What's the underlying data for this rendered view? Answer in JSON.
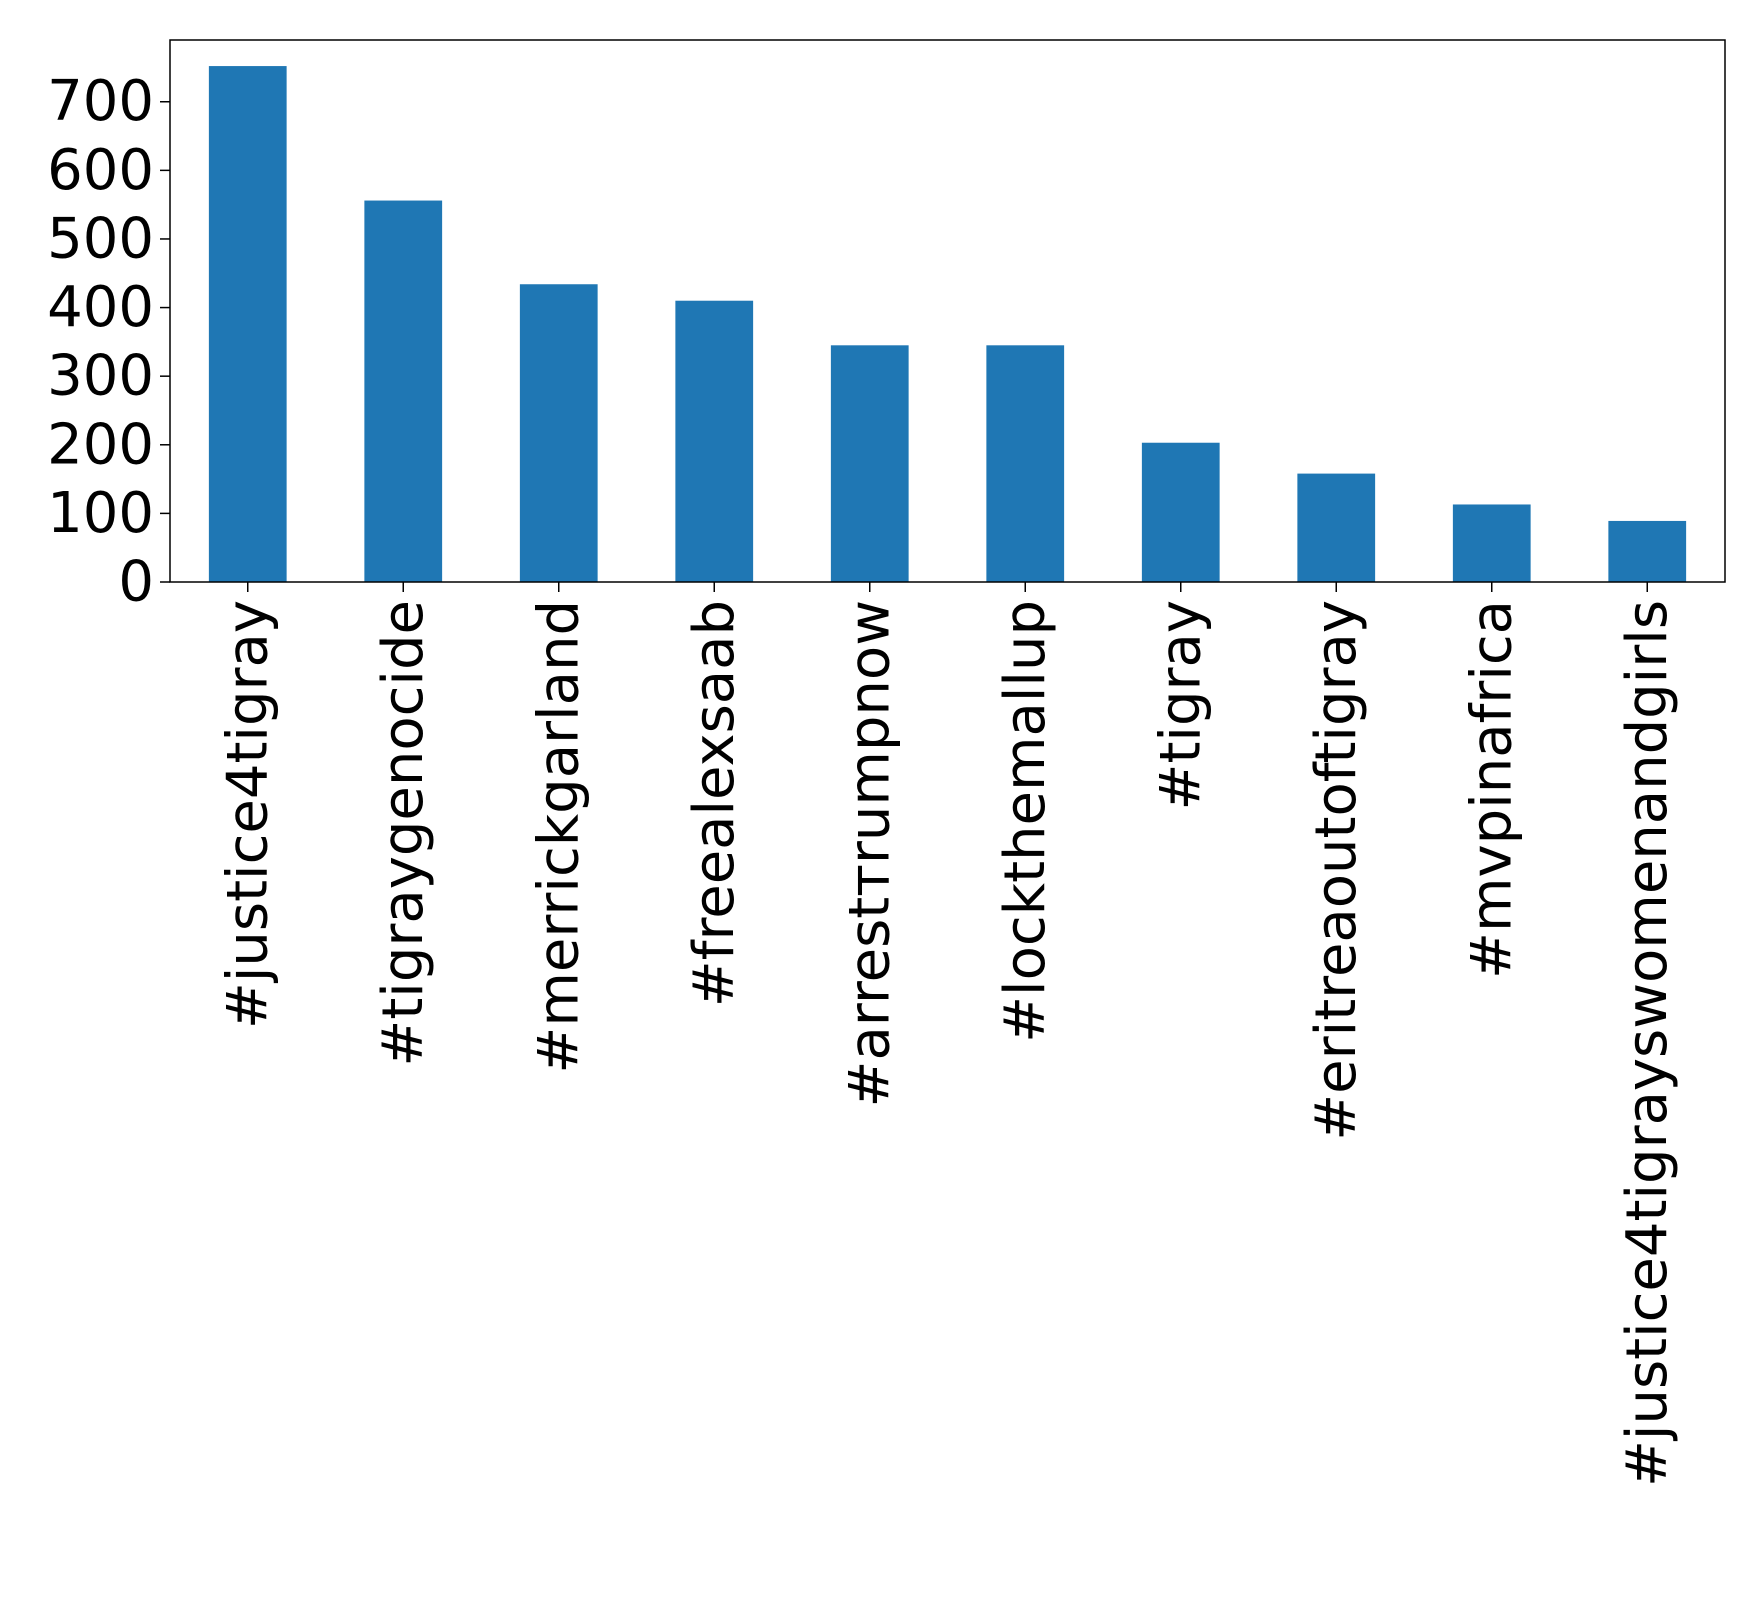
{
  "chart_data": {
    "type": "bar",
    "title": "",
    "xlabel": "",
    "ylabel": "",
    "categories": [
      "#justice4tigray",
      "#tigraygenocide",
      "#merrickgarland",
      "#freealexsaab",
      "#arrestтrumpnow",
      "#lockthemallup",
      "#tigray",
      "#eritreaoutoftigray",
      "#mvpinafrica",
      "#justice4tigrayswomenandgirls"
    ],
    "values": [
      752,
      556,
      434,
      410,
      345,
      345,
      203,
      158,
      113,
      89
    ],
    "ylim": [
      0,
      790
    ],
    "yticks": [
      0,
      100,
      200,
      300,
      400,
      500,
      600,
      700
    ],
    "grid": false,
    "legend": "none",
    "bar_color": "#1f77b4"
  }
}
